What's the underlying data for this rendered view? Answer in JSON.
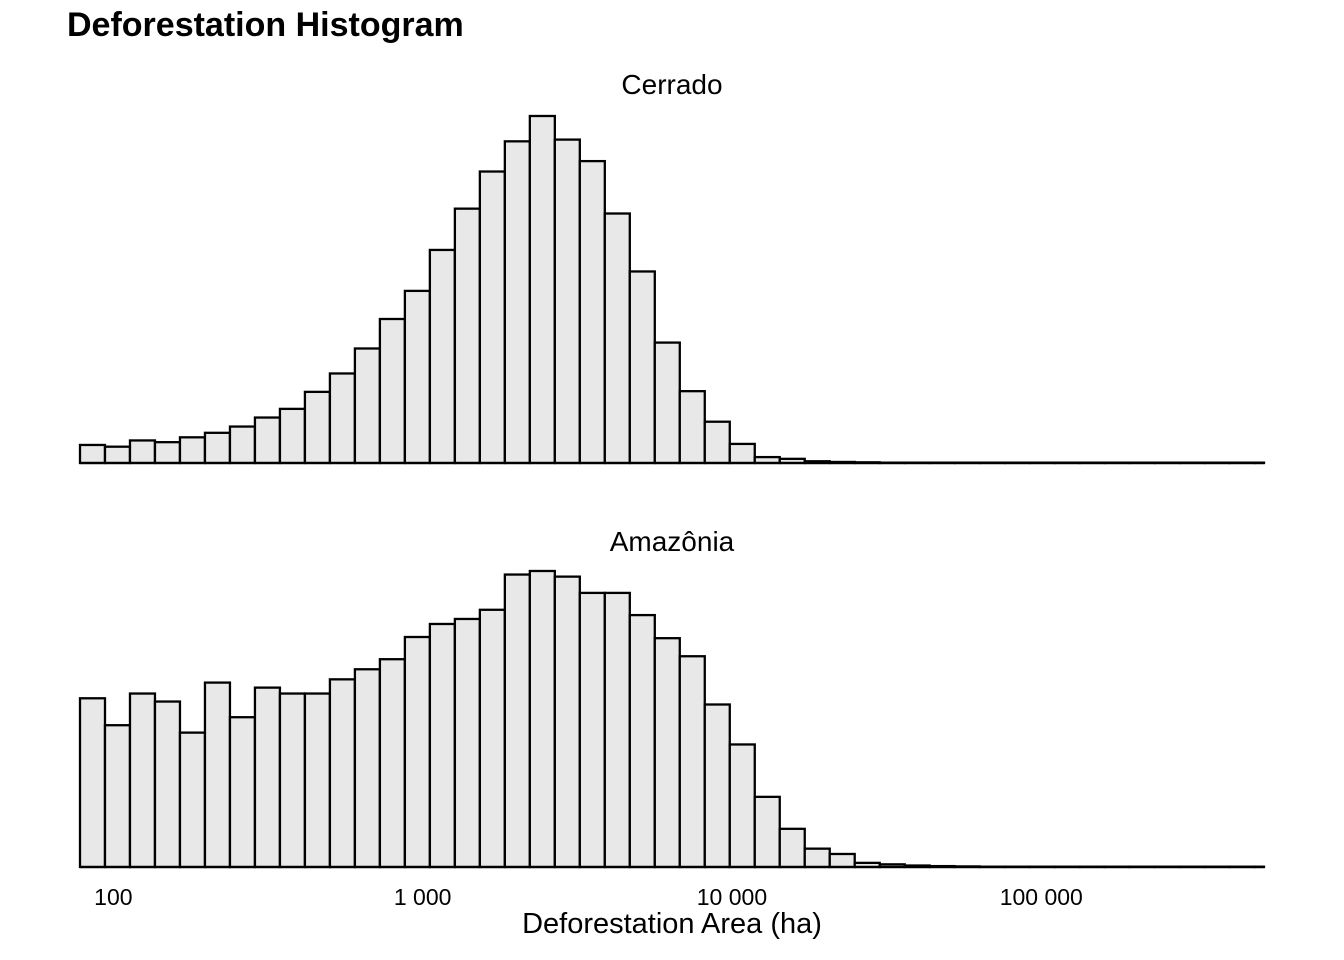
{
  "chart_data": {
    "type": "bar",
    "title": "Deforestation Histogram",
    "xlabel": "Deforestation Area (ha)",
    "ylabel": "",
    "x_scale": "log10",
    "xlim": [
      78,
      525000
    ],
    "xticks": [
      {
        "value": 100,
        "label": "100"
      },
      {
        "value": 1000,
        "label": "1 000"
      },
      {
        "value": 10000,
        "label": "10 000"
      },
      {
        "value": 100000,
        "label": "100 000"
      }
    ],
    "bin_width_log10": 0.0808,
    "first_bin_start": 78,
    "y_axis_shown": false,
    "grid": false,
    "panels": [
      {
        "name": "Cerrado",
        "ylim": [
          0,
          1.0
        ],
        "values": [
          0.052,
          0.047,
          0.065,
          0.06,
          0.074,
          0.087,
          0.105,
          0.131,
          0.156,
          0.205,
          0.258,
          0.33,
          0.415,
          0.496,
          0.614,
          0.733,
          0.84,
          0.927,
          1.0,
          0.932,
          0.87,
          0.719,
          0.552,
          0.347,
          0.207,
          0.119,
          0.055,
          0.017,
          0.012,
          0.005,
          0.003,
          0.002,
          0.001,
          0.001,
          0.001,
          0.001,
          0.001,
          0.001,
          0.001,
          0.001,
          0.001,
          0.001,
          0.001,
          0.001,
          0.001,
          0.001,
          0.001,
          0.001
        ]
      },
      {
        "name": "Amazônia",
        "ylim": [
          0,
          1.0
        ],
        "values": [
          0.57,
          0.479,
          0.586,
          0.559,
          0.454,
          0.623,
          0.506,
          0.606,
          0.586,
          0.586,
          0.634,
          0.668,
          0.702,
          0.777,
          0.821,
          0.838,
          0.869,
          0.988,
          1.0,
          0.981,
          0.926,
          0.926,
          0.851,
          0.773,
          0.712,
          0.549,
          0.414,
          0.237,
          0.129,
          0.062,
          0.044,
          0.014,
          0.009,
          0.005,
          0.003,
          0.002,
          0.001,
          0.001,
          0.001,
          0.001,
          0.001,
          0.001,
          0.001,
          0.001,
          0.001,
          0.001,
          0.001,
          0.001
        ]
      }
    ]
  }
}
